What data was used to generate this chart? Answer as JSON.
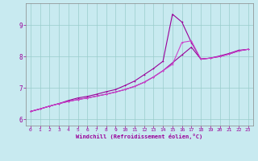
{
  "xlabel": "Windchill (Refroidissement éolien,°C)",
  "bg_color": "#c8eaf0",
  "line_color1": "#990099",
  "line_color2": "#cc44cc",
  "xlim": [
    -0.5,
    23.5
  ],
  "ylim": [
    5.8,
    9.7
  ],
  "xticks": [
    0,
    1,
    2,
    3,
    4,
    5,
    6,
    7,
    8,
    9,
    10,
    11,
    12,
    13,
    14,
    15,
    16,
    17,
    18,
    19,
    20,
    21,
    22,
    23
  ],
  "yticks": [
    6,
    7,
    8,
    9
  ],
  "grid_color": "#99cccc",
  "series1_x": [
    0,
    1,
    2,
    3,
    4,
    5,
    6,
    7,
    8,
    9,
    10,
    11,
    12,
    13,
    14,
    15,
    16,
    17,
    18,
    19,
    20,
    21,
    22,
    23
  ],
  "series1_y": [
    6.25,
    6.33,
    6.42,
    6.5,
    6.57,
    6.63,
    6.68,
    6.74,
    6.8,
    6.87,
    6.95,
    7.05,
    7.18,
    7.35,
    7.55,
    7.8,
    8.05,
    8.3,
    7.92,
    7.95,
    8.0,
    8.08,
    8.18,
    8.23
  ],
  "series2_x": [
    0,
    1,
    2,
    3,
    4,
    5,
    6,
    7,
    8,
    9,
    10,
    11,
    12,
    13,
    14,
    15,
    16,
    17,
    18,
    19,
    20,
    21,
    22,
    23
  ],
  "series2_y": [
    6.25,
    6.33,
    6.42,
    6.5,
    6.6,
    6.68,
    6.73,
    6.8,
    6.88,
    6.95,
    7.08,
    7.22,
    7.42,
    7.62,
    7.85,
    9.35,
    9.1,
    8.45,
    7.92,
    7.95,
    8.02,
    8.1,
    8.2,
    8.23
  ],
  "series3_x": [
    0,
    1,
    2,
    3,
    4,
    5,
    6,
    7,
    8,
    9,
    10,
    11,
    12,
    13,
    14,
    15,
    16,
    17,
    18,
    19,
    20,
    21,
    22,
    23
  ],
  "series3_y": [
    6.25,
    6.33,
    6.42,
    6.5,
    6.57,
    6.63,
    6.68,
    6.74,
    6.8,
    6.87,
    6.95,
    7.05,
    7.18,
    7.35,
    7.55,
    7.75,
    8.45,
    8.5,
    7.92,
    7.95,
    8.0,
    8.08,
    8.18,
    8.23
  ]
}
